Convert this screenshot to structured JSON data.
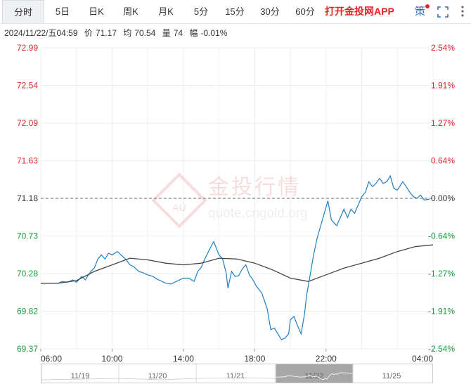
{
  "tabs": [
    "分时",
    "5日",
    "日K",
    "周K",
    "月K",
    "5分",
    "15分",
    "30分",
    "60分"
  ],
  "active_tab": "分时",
  "app_link": "打开金投网APP",
  "strategy_label": "策",
  "info": {
    "datetime": "2024/11/22/五04:59",
    "price_label": "价",
    "price": "71.17",
    "avg_label": "均",
    "avg": "70.54",
    "volume_label": "量",
    "volume": "74",
    "change_label": "幅",
    "change": "-0.01%"
  },
  "watermark": {
    "cn": "金投行情",
    "url": "quote.cngold.org",
    "logo": "AU"
  },
  "colors": {
    "price_line": "#1f7fc4",
    "avg_line": "#444444",
    "up": "#e0262b",
    "down": "#1a9a3a",
    "ref": "#333333"
  },
  "chart_data": {
    "type": "line",
    "title": "",
    "xlabel": "",
    "ylabel": "",
    "reference_price": 71.18,
    "ylim": [
      69.37,
      72.99
    ],
    "y_ticks": [
      "72.99",
      "72.54",
      "72.09",
      "71.63",
      "71.18",
      "70.73",
      "70.28",
      "69.82",
      "69.37"
    ],
    "pct_ticks": [
      "2.54%",
      "1.91%",
      "1.27%",
      "0.64%",
      "0.00%",
      "-0.64%",
      "-1.27%",
      "-1.91%",
      "-2.54%"
    ],
    "x_ticks": [
      "06:00",
      "10:00",
      "14:00",
      "18:00",
      "22:00",
      "04:00"
    ],
    "x_tick_hours": [
      0,
      4,
      8,
      12,
      16,
      22
    ],
    "xlim_hours": [
      0,
      22
    ],
    "grid": true,
    "series": [
      {
        "points": [
          [
            0.0,
            70.16
          ],
          [
            0.5,
            70.16
          ],
          [
            1.0,
            70.16
          ],
          [
            1.2,
            70.18
          ],
          [
            1.5,
            70.17
          ],
          [
            1.8,
            70.2
          ],
          [
            2.0,
            70.17
          ],
          [
            2.3,
            70.24
          ],
          [
            2.5,
            70.2
          ],
          [
            2.8,
            70.3
          ],
          [
            3.0,
            70.34
          ],
          [
            3.2,
            70.45
          ],
          [
            3.4,
            70.5
          ],
          [
            3.6,
            70.45
          ],
          [
            3.8,
            70.52
          ],
          [
            4.0,
            70.5
          ],
          [
            4.3,
            70.54
          ],
          [
            4.5,
            70.5
          ],
          [
            4.8,
            70.44
          ],
          [
            5.0,
            70.38
          ],
          [
            5.2,
            70.36
          ],
          [
            5.5,
            70.3
          ],
          [
            5.8,
            70.28
          ],
          [
            6.0,
            70.26
          ],
          [
            6.3,
            70.24
          ],
          [
            6.5,
            70.21
          ],
          [
            6.8,
            70.18
          ],
          [
            7.0,
            70.16
          ],
          [
            7.3,
            70.15
          ],
          [
            7.6,
            70.18
          ],
          [
            8.0,
            70.22
          ],
          [
            8.3,
            70.22
          ],
          [
            8.6,
            70.18
          ],
          [
            8.8,
            70.3
          ],
          [
            9.0,
            70.35
          ],
          [
            9.2,
            70.45
          ],
          [
            9.5,
            70.58
          ],
          [
            9.7,
            70.66
          ],
          [
            9.9,
            70.55
          ],
          [
            10.0,
            70.5
          ],
          [
            10.2,
            70.45
          ],
          [
            10.4,
            70.28
          ],
          [
            10.5,
            70.1
          ],
          [
            10.7,
            70.3
          ],
          [
            10.9,
            70.24
          ],
          [
            11.1,
            70.25
          ],
          [
            11.3,
            70.33
          ],
          [
            11.5,
            70.38
          ],
          [
            11.7,
            70.26
          ],
          [
            11.9,
            70.2
          ],
          [
            12.1,
            70.12
          ],
          [
            12.4,
            70.04
          ],
          [
            12.7,
            69.85
          ],
          [
            12.9,
            69.6
          ],
          [
            13.1,
            69.62
          ],
          [
            13.3,
            69.55
          ],
          [
            13.5,
            69.48
          ],
          [
            13.7,
            69.5
          ],
          [
            13.9,
            69.55
          ],
          [
            14.0,
            69.72
          ],
          [
            14.2,
            69.76
          ],
          [
            14.4,
            69.65
          ],
          [
            14.6,
            69.55
          ],
          [
            14.8,
            69.8
          ],
          [
            14.9,
            70.0
          ],
          [
            15.1,
            70.25
          ],
          [
            15.3,
            70.5
          ],
          [
            15.5,
            70.7
          ],
          [
            15.7,
            70.85
          ],
          [
            15.9,
            71.0
          ],
          [
            16.1,
            71.15
          ],
          [
            16.3,
            70.92
          ],
          [
            16.6,
            70.85
          ],
          [
            16.8,
            70.95
          ],
          [
            17.0,
            71.05
          ],
          [
            17.2,
            70.95
          ],
          [
            17.4,
            71.05
          ],
          [
            17.6,
            71.0
          ],
          [
            17.8,
            71.1
          ],
          [
            18.0,
            71.2
          ],
          [
            18.2,
            71.25
          ],
          [
            18.4,
            71.38
          ],
          [
            18.6,
            71.32
          ],
          [
            18.8,
            71.36
          ],
          [
            19.0,
            71.42
          ],
          [
            19.2,
            71.36
          ],
          [
            19.4,
            71.38
          ],
          [
            19.6,
            71.45
          ],
          [
            19.8,
            71.3
          ],
          [
            20.0,
            71.28
          ],
          [
            20.3,
            71.38
          ],
          [
            20.5,
            71.32
          ],
          [
            20.7,
            71.25
          ],
          [
            20.9,
            71.2
          ],
          [
            21.1,
            71.18
          ],
          [
            21.3,
            71.22
          ],
          [
            21.5,
            71.16
          ],
          [
            21.8,
            71.17
          ]
        ]
      },
      {
        "name": "均",
        "points": [
          [
            0.0,
            70.16
          ],
          [
            1.0,
            70.16
          ],
          [
            2.0,
            70.19
          ],
          [
            3.0,
            70.3
          ],
          [
            4.0,
            70.38
          ],
          [
            5.0,
            70.46
          ],
          [
            6.0,
            70.44
          ],
          [
            7.0,
            70.4
          ],
          [
            8.0,
            70.38
          ],
          [
            9.0,
            70.4
          ],
          [
            10.0,
            70.46
          ],
          [
            11.0,
            70.45
          ],
          [
            12.0,
            70.4
          ],
          [
            13.0,
            70.32
          ],
          [
            14.0,
            70.22
          ],
          [
            15.0,
            70.18
          ],
          [
            16.0,
            70.26
          ],
          [
            17.0,
            70.34
          ],
          [
            18.0,
            70.4
          ],
          [
            19.0,
            70.46
          ],
          [
            20.0,
            70.54
          ],
          [
            21.0,
            70.6
          ],
          [
            22.0,
            70.62
          ]
        ]
      }
    ],
    "navigator": {
      "labels": [
        "11/19",
        "11/20",
        "11/21",
        "11/22",
        "11/25"
      ]
    }
  }
}
